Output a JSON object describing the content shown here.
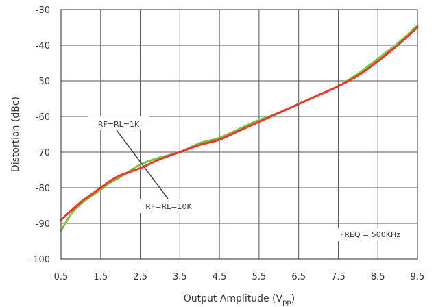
{
  "chart_data": {
    "type": "line",
    "title": "",
    "xlabel": "Output Amplitude (V",
    "xlabel_sub": "pp",
    "xlabel_close": ")",
    "ylabel": "Distortion (dBc)",
    "xlim": [
      0.5,
      9.5
    ],
    "ylim": [
      -100,
      -30
    ],
    "xticks": [
      0.5,
      1.5,
      2.5,
      3.5,
      4.5,
      5.5,
      6.5,
      7.5,
      8.5,
      9.5
    ],
    "yticks": [
      -30,
      -40,
      -50,
      -60,
      -70,
      -80,
      -90,
      -100
    ],
    "grid": true,
    "legend": "none",
    "annotations": {
      "rf_1k": "RF=RL=1K",
      "rf_10k": "RF=RL=10K",
      "freq": "FREQ = 500KHz"
    },
    "series": [
      {
        "color": "#7ac143",
        "x": [
          0.5,
          0.75,
          1.0,
          1.25,
          1.5,
          1.75,
          2.0,
          2.5,
          3.0,
          3.5,
          4.0,
          4.5,
          5.0,
          5.5,
          6.0,
          6.5,
          7.0,
          7.5,
          8.0,
          8.5,
          9.0,
          9.5
        ],
        "y": [
          -92,
          -87.5,
          -84.5,
          -82.5,
          -80.5,
          -78.5,
          -77,
          -73.5,
          -71.5,
          -70,
          -67.5,
          -66,
          -63.5,
          -61,
          -59,
          -56.5,
          -54,
          -51.5,
          -48,
          -43.8,
          -39.5,
          -34.5
        ]
      },
      {
        "color": "#e63a2e",
        "x": [
          0.5,
          0.75,
          1.0,
          1.25,
          1.5,
          1.75,
          2.0,
          2.5,
          3.0,
          3.5,
          4.0,
          4.5,
          5.0,
          5.5,
          6.0,
          6.5,
          7.0,
          7.5,
          8.0,
          8.5,
          9.0,
          9.5
        ],
        "y": [
          -89,
          -86.5,
          -84,
          -82,
          -80,
          -78,
          -76.5,
          -74.5,
          -72,
          -70,
          -68,
          -66.5,
          -64,
          -61.5,
          -59,
          -56.5,
          -54,
          -51.5,
          -48.5,
          -44.5,
          -40,
          -35
        ]
      }
    ]
  }
}
